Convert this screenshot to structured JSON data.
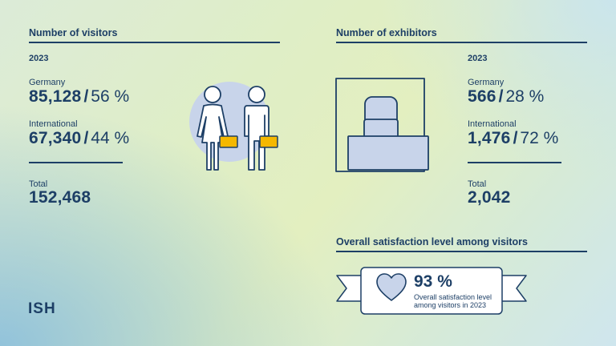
{
  "visitors": {
    "title": "Number of visitors",
    "year": "2023",
    "germany_label": "Germany",
    "germany_value": "85,128",
    "germany_pct": "56 %",
    "international_label": "International",
    "international_value": "67,340",
    "international_pct": "44 %",
    "total_label": "Total",
    "total_value": "152,468"
  },
  "exhibitors": {
    "title": "Number of exhibitors",
    "year": "2023",
    "germany_label": "Germany",
    "germany_value": "566",
    "germany_pct": "28 %",
    "international_label": "International",
    "international_value": "1,476",
    "international_pct": "72 %",
    "total_label": "Total",
    "total_value": "2,042"
  },
  "satisfaction": {
    "title": "Overall satisfaction level among visitors",
    "value": "93 %",
    "caption_line1": "Overall satisfaction level",
    "caption_line2": "among visitors in 2023"
  },
  "brand": {
    "logo": "ISH"
  },
  "colors": {
    "navy": "#1d3f66",
    "accent_yellow": "#f5b800",
    "icon_fill": "#c8d4ea"
  },
  "icons": [
    "visitors-people-icon",
    "exhibitor-booth-icon",
    "heart-icon"
  ]
}
